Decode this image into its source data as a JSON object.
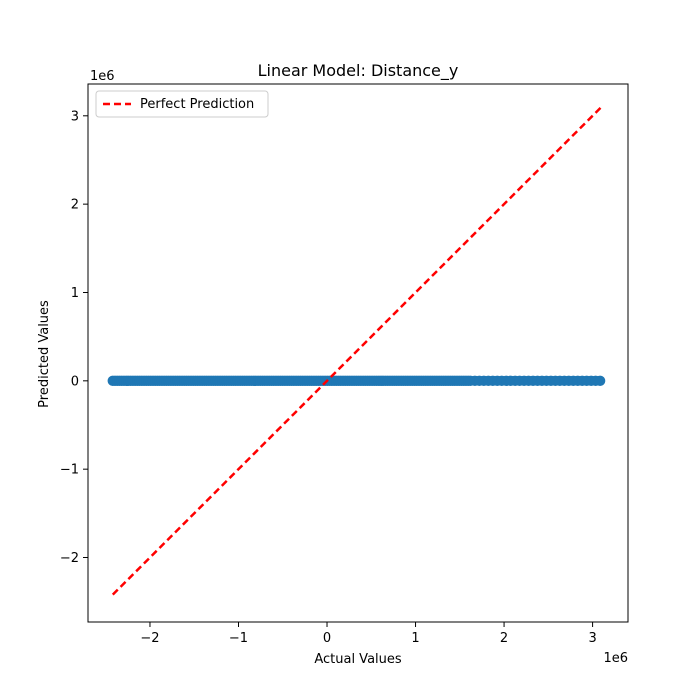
{
  "chart_data": {
    "type": "scatter",
    "title": "Linear Model: Distance_y",
    "xlabel": "Actual Values",
    "ylabel": "Predicted Values",
    "x_offset_label": "1e6",
    "y_offset_label": "1e6",
    "xlim": [
      -2700000,
      3400000
    ],
    "ylim": [
      -2730000,
      3360000
    ],
    "grid": false,
    "legend_position": "top-left",
    "x_ticks": [
      {
        "value": -2000000,
        "label": "−2"
      },
      {
        "value": -1000000,
        "label": "−1"
      },
      {
        "value": 0,
        "label": "0"
      },
      {
        "value": 1000000,
        "label": "1"
      },
      {
        "value": 2000000,
        "label": "2"
      },
      {
        "value": 3000000,
        "label": "3"
      }
    ],
    "y_ticks": [
      {
        "value": -2000000,
        "label": "−2"
      },
      {
        "value": -1000000,
        "label": "−1"
      },
      {
        "value": 0,
        "label": "0"
      },
      {
        "value": 1000000,
        "label": "1"
      },
      {
        "value": 2000000,
        "label": "2"
      },
      {
        "value": 3000000,
        "label": "3"
      }
    ],
    "scatter": {
      "color": "#1f77b4",
      "x_min": -2420000,
      "x_max": 3110000,
      "y_value": 0,
      "dense_until": 1600000,
      "point_count": 220
    },
    "reference_line": {
      "name": "Perfect Prediction",
      "color": "#ff0000",
      "style": "dashed",
      "x": [
        -2420000,
        3110000
      ],
      "y": [
        -2420000,
        3110000
      ]
    }
  }
}
